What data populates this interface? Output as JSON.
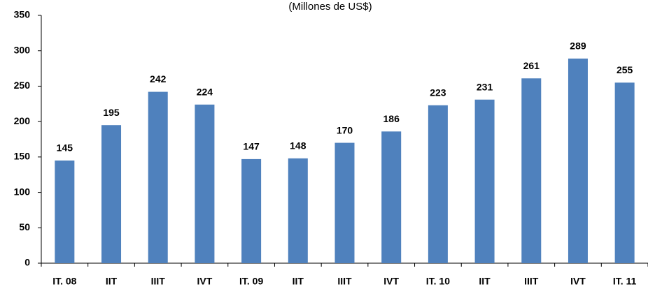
{
  "chart_data": {
    "type": "bar",
    "subtitle": "(Millones de US$)",
    "categories": [
      "IT. 08",
      "IIT",
      "IIIT",
      "IVT",
      "IT. 09",
      "IIT",
      "IIIT",
      "IVT",
      "IT. 10",
      "IIT",
      "IIIT",
      "IVT",
      "IT. 11"
    ],
    "values": [
      145,
      195,
      242,
      224,
      147,
      148,
      170,
      186,
      223,
      231,
      261,
      289,
      255
    ],
    "color": "#4f81bd",
    "ylim": [
      0,
      350
    ],
    "yticks": [
      0,
      50,
      100,
      150,
      200,
      250,
      300,
      350
    ],
    "grid": false
  }
}
